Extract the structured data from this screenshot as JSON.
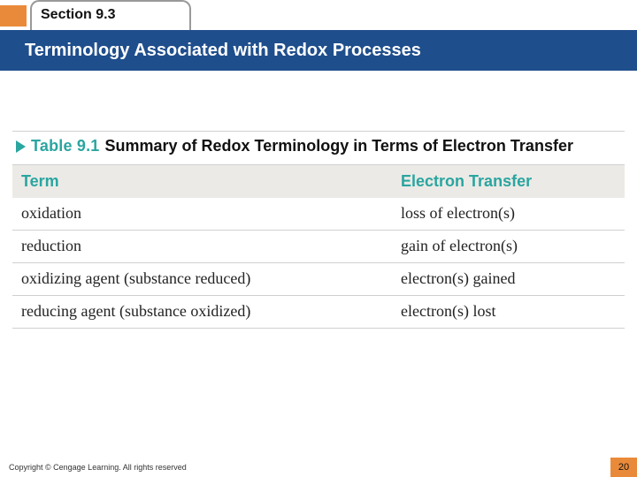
{
  "header": {
    "section_label": "Section 9.3",
    "slide_title": "Terminology Associated with Redox Processes",
    "accent_orange": "#e98a3a",
    "bar_blue": "#1f4e8c",
    "tab_border": "#999999"
  },
  "table": {
    "label_prefix": "Table 9.1",
    "title": "Summary of Redox Terminology in Terms of Electron Transfer",
    "brand_teal": "#2aa5a0",
    "header_bg": "#eceae6",
    "rule_color": "#d0d0d0",
    "columns": [
      "Term",
      "Electron Transfer"
    ],
    "col_widths_pct": [
      62,
      38
    ],
    "rows": [
      [
        "oxidation",
        "loss of electron(s)"
      ],
      [
        "reduction",
        "gain of electron(s)"
      ],
      [
        "oxidizing agent (substance reduced)",
        "electron(s) gained"
      ],
      [
        "reducing agent (substance oxidized)",
        "electron(s) lost"
      ]
    ],
    "header_fontsize": 18,
    "body_fontsize": 18,
    "body_font": "serif"
  },
  "footer": {
    "copyright": "Copyright © Cengage Learning. All rights reserved",
    "page_number": "20"
  }
}
